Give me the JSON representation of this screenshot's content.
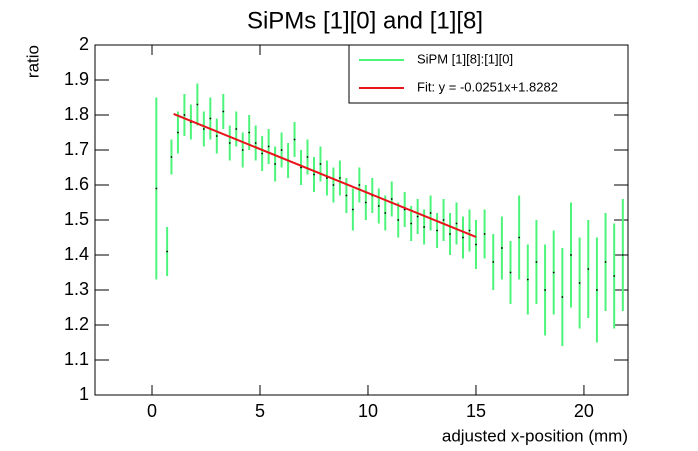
{
  "chart_data": {
    "type": "scatter",
    "title": "SiPMs [1][0] and [1][8]",
    "x_label": "adjusted x-position (mm)",
    "y_label": "ratio",
    "xlim": [
      -2.64,
      22.04
    ],
    "ylim": [
      1,
      2
    ],
    "xticks": [
      0,
      5,
      10,
      15,
      20
    ],
    "yticks": [
      1,
      1.1,
      1.2,
      1.3,
      1.4,
      1.5,
      1.6,
      1.7,
      1.8,
      1.9,
      2
    ],
    "legend": "top-right",
    "series": [
      {
        "name": "SiPM [1][8]:[1][0]",
        "color": "#4cf57a",
        "x": [
          0.2,
          0.7,
          0.9,
          1.2,
          1.5,
          1.8,
          2.1,
          2.4,
          2.7,
          3.0,
          3.3,
          3.6,
          3.9,
          4.2,
          4.5,
          4.8,
          5.1,
          5.4,
          5.7,
          6.0,
          6.3,
          6.6,
          6.9,
          7.2,
          7.5,
          7.8,
          8.1,
          8.4,
          8.7,
          9.0,
          9.3,
          9.6,
          9.9,
          10.2,
          10.5,
          10.8,
          11.1,
          11.4,
          11.7,
          12.0,
          12.3,
          12.6,
          12.9,
          13.2,
          13.5,
          13.8,
          14.1,
          14.4,
          14.7,
          15.0,
          15.4,
          15.8,
          16.2,
          16.6,
          17.0,
          17.4,
          17.8,
          18.2,
          18.6,
          19.0,
          19.4,
          19.8,
          20.2,
          20.6,
          21.0,
          21.4,
          21.8
        ],
        "values": [
          1.59,
          1.41,
          1.68,
          1.75,
          1.8,
          1.78,
          1.83,
          1.76,
          1.79,
          1.74,
          1.81,
          1.72,
          1.76,
          1.7,
          1.75,
          1.72,
          1.69,
          1.71,
          1.66,
          1.7,
          1.67,
          1.73,
          1.65,
          1.68,
          1.63,
          1.66,
          1.62,
          1.6,
          1.62,
          1.57,
          1.53,
          1.6,
          1.55,
          1.57,
          1.54,
          1.52,
          1.56,
          1.5,
          1.53,
          1.49,
          1.51,
          1.48,
          1.52,
          1.47,
          1.5,
          1.46,
          1.49,
          1.45,
          1.47,
          1.43,
          1.46,
          1.38,
          1.42,
          1.35,
          1.45,
          1.33,
          1.38,
          1.3,
          1.35,
          1.28,
          1.4,
          1.32,
          1.36,
          1.3,
          1.38,
          1.34,
          1.4
        ],
        "errors": [
          0.26,
          0.07,
          0.05,
          0.06,
          0.06,
          0.05,
          0.06,
          0.05,
          0.06,
          0.05,
          0.05,
          0.05,
          0.05,
          0.05,
          0.05,
          0.05,
          0.05,
          0.05,
          0.05,
          0.05,
          0.05,
          0.05,
          0.05,
          0.05,
          0.05,
          0.05,
          0.05,
          0.05,
          0.05,
          0.05,
          0.06,
          0.05,
          0.05,
          0.05,
          0.05,
          0.05,
          0.05,
          0.05,
          0.05,
          0.05,
          0.05,
          0.05,
          0.05,
          0.05,
          0.06,
          0.06,
          0.06,
          0.06,
          0.06,
          0.07,
          0.07,
          0.08,
          0.09,
          0.09,
          0.12,
          0.1,
          0.12,
          0.13,
          0.12,
          0.14,
          0.15,
          0.13,
          0.14,
          0.15,
          0.14,
          0.15,
          0.16
        ]
      },
      {
        "name": "Fit: y = -0.0251x+1.8282",
        "color": "#e8151b",
        "line": true,
        "x": [
          1,
          15
        ],
        "values": [
          1.8031,
          1.4517
        ]
      }
    ]
  }
}
